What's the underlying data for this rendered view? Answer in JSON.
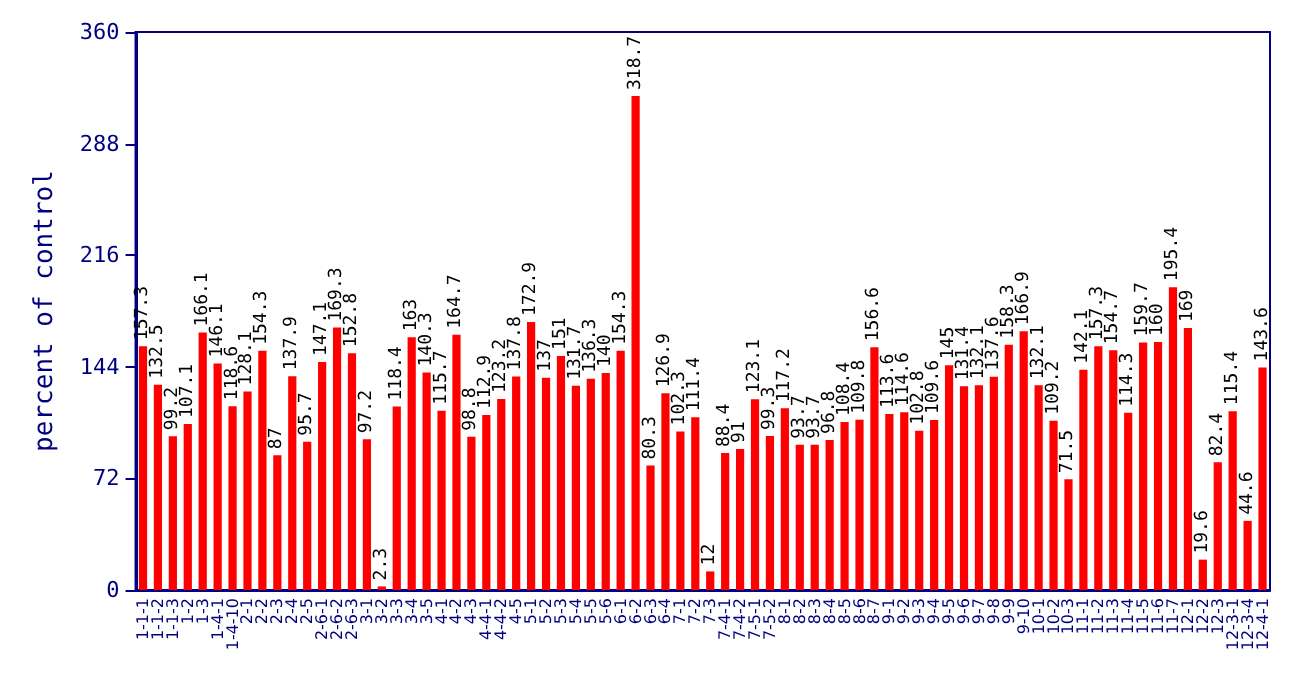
{
  "chart_data": {
    "type": "bar",
    "ylabel": "percent of control",
    "categories": [
      "1-1-1",
      "1-1-2",
      "1-1-3",
      "1-2",
      "1-3",
      "1-4-1",
      "1-4-10",
      "2-1",
      "2-2",
      "2-3",
      "2-4",
      "2-5",
      "2-6-1",
      "2-6-2",
      "2-6-3",
      "3-1",
      "3-2",
      "3-3",
      "3-4",
      "3-5",
      "4-1",
      "4-2",
      "4-3",
      "4-4-1",
      "4-4-2",
      "4-5",
      "5-1",
      "5-2",
      "5-3",
      "5-4",
      "5-5",
      "5-6",
      "6-1",
      "6-2",
      "6-3",
      "6-4",
      "7-1",
      "7-2",
      "7-3",
      "7-4-1",
      "7-4-2",
      "7-5-1",
      "7-5-2",
      "8-1",
      "8-2",
      "8-3",
      "8-4",
      "8-5",
      "8-6",
      "8-7",
      "9-1",
      "9-2",
      "9-3",
      "9-4",
      "9-5",
      "9-6",
      "9-7",
      "9-8",
      "9-9",
      "9-10",
      "10-1",
      "10-2",
      "10-3",
      "11-1",
      "11-2",
      "11-3",
      "11-4",
      "11-5",
      "11-6",
      "11-7",
      "12-1",
      "12-2",
      "12-3",
      "12-3-1",
      "12-3-4",
      "12-4-1"
    ],
    "values": [
      157.3,
      132.5,
      99.2,
      107.1,
      166.1,
      146.1,
      118.6,
      128.1,
      154.3,
      87,
      137.9,
      95.7,
      147.1,
      169.3,
      152.8,
      97.2,
      2.3,
      118.4,
      163,
      140.3,
      115.7,
      164.7,
      98.8,
      112.9,
      123.2,
      137.8,
      172.9,
      137,
      151,
      131.7,
      136.3,
      140,
      154.3,
      318.7,
      80.3,
      126.9,
      102.3,
      111.4,
      12,
      88.4,
      91,
      123.1,
      99.3,
      117.2,
      93.7,
      93.7,
      96.8,
      108.4,
      109.8,
      156.6,
      113.6,
      114.6,
      102.8,
      109.6,
      145,
      131.4,
      132.1,
      137.6,
      158.3,
      166.9,
      132.1,
      109.2,
      71.5,
      142.1,
      157.3,
      154.7,
      114.3,
      159.7,
      160,
      195.4,
      169,
      19.6,
      82.4,
      115.4,
      44.6,
      143.6
    ],
    "color": "#ff0000",
    "data_labels": true,
    "ylim": [
      0,
      360
    ],
    "yticks": [
      0,
      72,
      144,
      216,
      288,
      360
    ],
    "grid": false
  }
}
